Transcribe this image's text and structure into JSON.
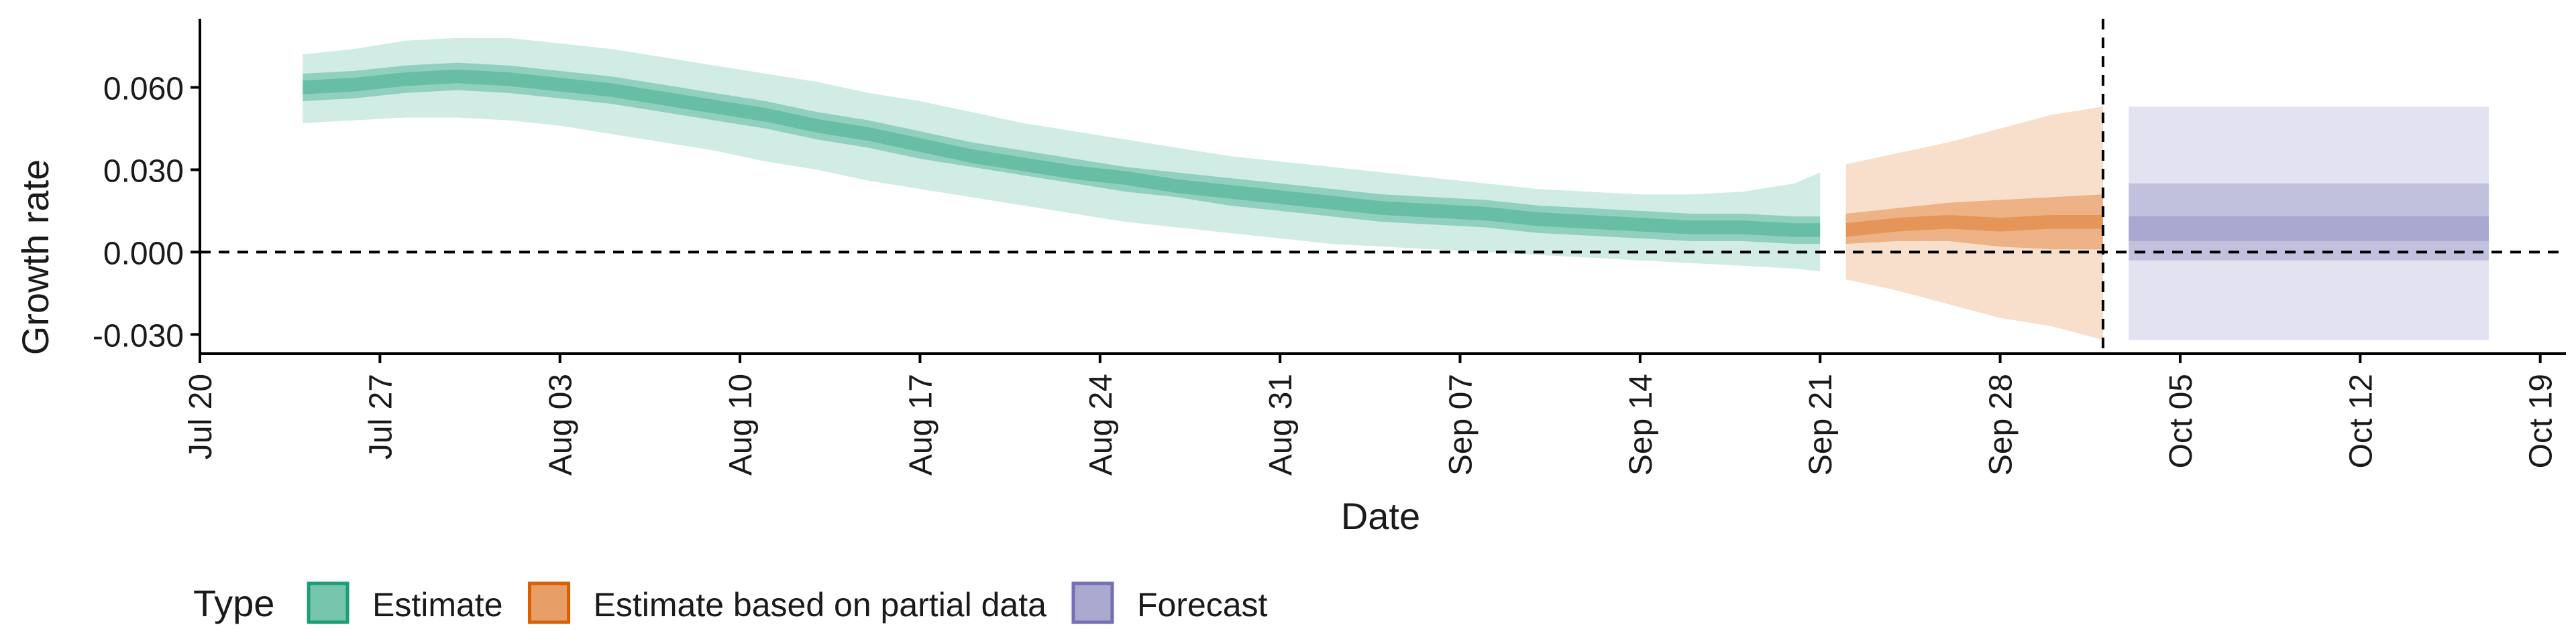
{
  "chart_data": {
    "type": "area",
    "xlabel": "Date",
    "ylabel": "Growth rate",
    "x_ticks": [
      "Jul 20",
      "Jul 27",
      "Aug 03",
      "Aug 10",
      "Aug 17",
      "Aug 24",
      "Aug 31",
      "Sep 07",
      "Sep 14",
      "Sep 21",
      "Sep 28",
      "Oct 05",
      "Oct 12",
      "Oct 19"
    ],
    "y_ticks": [
      "-0.030",
      "0.000",
      "0.030",
      "0.060"
    ],
    "xlim": [
      "2020-07-20",
      "2020-10-20"
    ],
    "ylim": [
      -0.037,
      0.085
    ],
    "reference_lines": {
      "horizontal_y": 0.0,
      "vertical_x": "2020-10-02"
    },
    "legend": {
      "title": "Type",
      "position": "bottom-left",
      "entries": [
        "Estimate",
        "Estimate based on partial data",
        "Forecast"
      ]
    },
    "colors": {
      "Estimate": "#1b9e77",
      "Estimate based on partial data": "#d95f02",
      "Forecast": "#7570b3"
    },
    "series": [
      {
        "name": "Estimate",
        "x": [
          "2020-07-24",
          "2020-07-26",
          "2020-07-28",
          "2020-07-30",
          "2020-08-01",
          "2020-08-03",
          "2020-08-05",
          "2020-08-07",
          "2020-08-09",
          "2020-08-11",
          "2020-08-13",
          "2020-08-15",
          "2020-08-17",
          "2020-08-19",
          "2020-08-21",
          "2020-08-23",
          "2020-08-25",
          "2020-08-27",
          "2020-08-29",
          "2020-08-31",
          "2020-09-02",
          "2020-09-04",
          "2020-09-06",
          "2020-09-08",
          "2020-09-10",
          "2020-09-12",
          "2020-09-14",
          "2020-09-16",
          "2020-09-18",
          "2020-09-20",
          "2020-09-21"
        ],
        "median": [
          0.06,
          0.061,
          0.063,
          0.064,
          0.063,
          0.061,
          0.059,
          0.056,
          0.053,
          0.05,
          0.046,
          0.043,
          0.039,
          0.035,
          0.032,
          0.029,
          0.027,
          0.024,
          0.022,
          0.02,
          0.018,
          0.016,
          0.015,
          0.014,
          0.012,
          0.011,
          0.01,
          0.009,
          0.009,
          0.008,
          0.008
        ],
        "inner_low": [
          0.055,
          0.056,
          0.058,
          0.059,
          0.058,
          0.056,
          0.054,
          0.051,
          0.048,
          0.045,
          0.041,
          0.038,
          0.034,
          0.031,
          0.028,
          0.025,
          0.022,
          0.02,
          0.017,
          0.015,
          0.013,
          0.011,
          0.01,
          0.009,
          0.007,
          0.006,
          0.005,
          0.004,
          0.004,
          0.003,
          0.003
        ],
        "inner_high": [
          0.065,
          0.066,
          0.068,
          0.069,
          0.068,
          0.066,
          0.064,
          0.061,
          0.058,
          0.055,
          0.051,
          0.048,
          0.044,
          0.04,
          0.037,
          0.034,
          0.031,
          0.029,
          0.027,
          0.025,
          0.023,
          0.021,
          0.02,
          0.019,
          0.017,
          0.016,
          0.015,
          0.014,
          0.014,
          0.013,
          0.013
        ],
        "outer_low": [
          0.047,
          0.048,
          0.049,
          0.049,
          0.048,
          0.046,
          0.043,
          0.04,
          0.037,
          0.033,
          0.03,
          0.026,
          0.023,
          0.02,
          0.017,
          0.014,
          0.011,
          0.009,
          0.007,
          0.005,
          0.003,
          0.002,
          0.001,
          0.0,
          -0.001,
          -0.002,
          -0.003,
          -0.004,
          -0.005,
          -0.006,
          -0.007
        ],
        "outer_high": [
          0.072,
          0.074,
          0.077,
          0.078,
          0.078,
          0.076,
          0.074,
          0.071,
          0.068,
          0.065,
          0.062,
          0.058,
          0.055,
          0.051,
          0.047,
          0.044,
          0.041,
          0.038,
          0.035,
          0.033,
          0.031,
          0.029,
          0.027,
          0.025,
          0.023,
          0.022,
          0.021,
          0.021,
          0.022,
          0.025,
          0.029
        ]
      },
      {
        "name": "Estimate based on partial data",
        "x": [
          "2020-09-22",
          "2020-09-24",
          "2020-09-26",
          "2020-09-28",
          "2020-09-30",
          "2020-10-02"
        ],
        "median": [
          0.008,
          0.01,
          0.011,
          0.01,
          0.011,
          0.011
        ],
        "inner_low": [
          0.003,
          0.004,
          0.004,
          0.002,
          0.001,
          0.001
        ],
        "inner_high": [
          0.014,
          0.016,
          0.018,
          0.019,
          0.02,
          0.021
        ],
        "outer_low": [
          -0.01,
          -0.014,
          -0.019,
          -0.024,
          -0.027,
          -0.032
        ],
        "outer_high": [
          0.032,
          0.036,
          0.04,
          0.045,
          0.05,
          0.053
        ]
      },
      {
        "name": "Forecast",
        "x": [
          "2020-10-03",
          "2020-10-17"
        ],
        "median": [
          0.013,
          0.013
        ],
        "inner_low": [
          0.004,
          0.004
        ],
        "inner_high": [
          0.025,
          0.025
        ],
        "mid_low": [
          -0.003,
          -0.003
        ],
        "mid_high": [
          0.013,
          0.013
        ],
        "outer_low": [
          -0.032,
          -0.032
        ],
        "outer_high": [
          0.053,
          0.053
        ]
      }
    ]
  }
}
